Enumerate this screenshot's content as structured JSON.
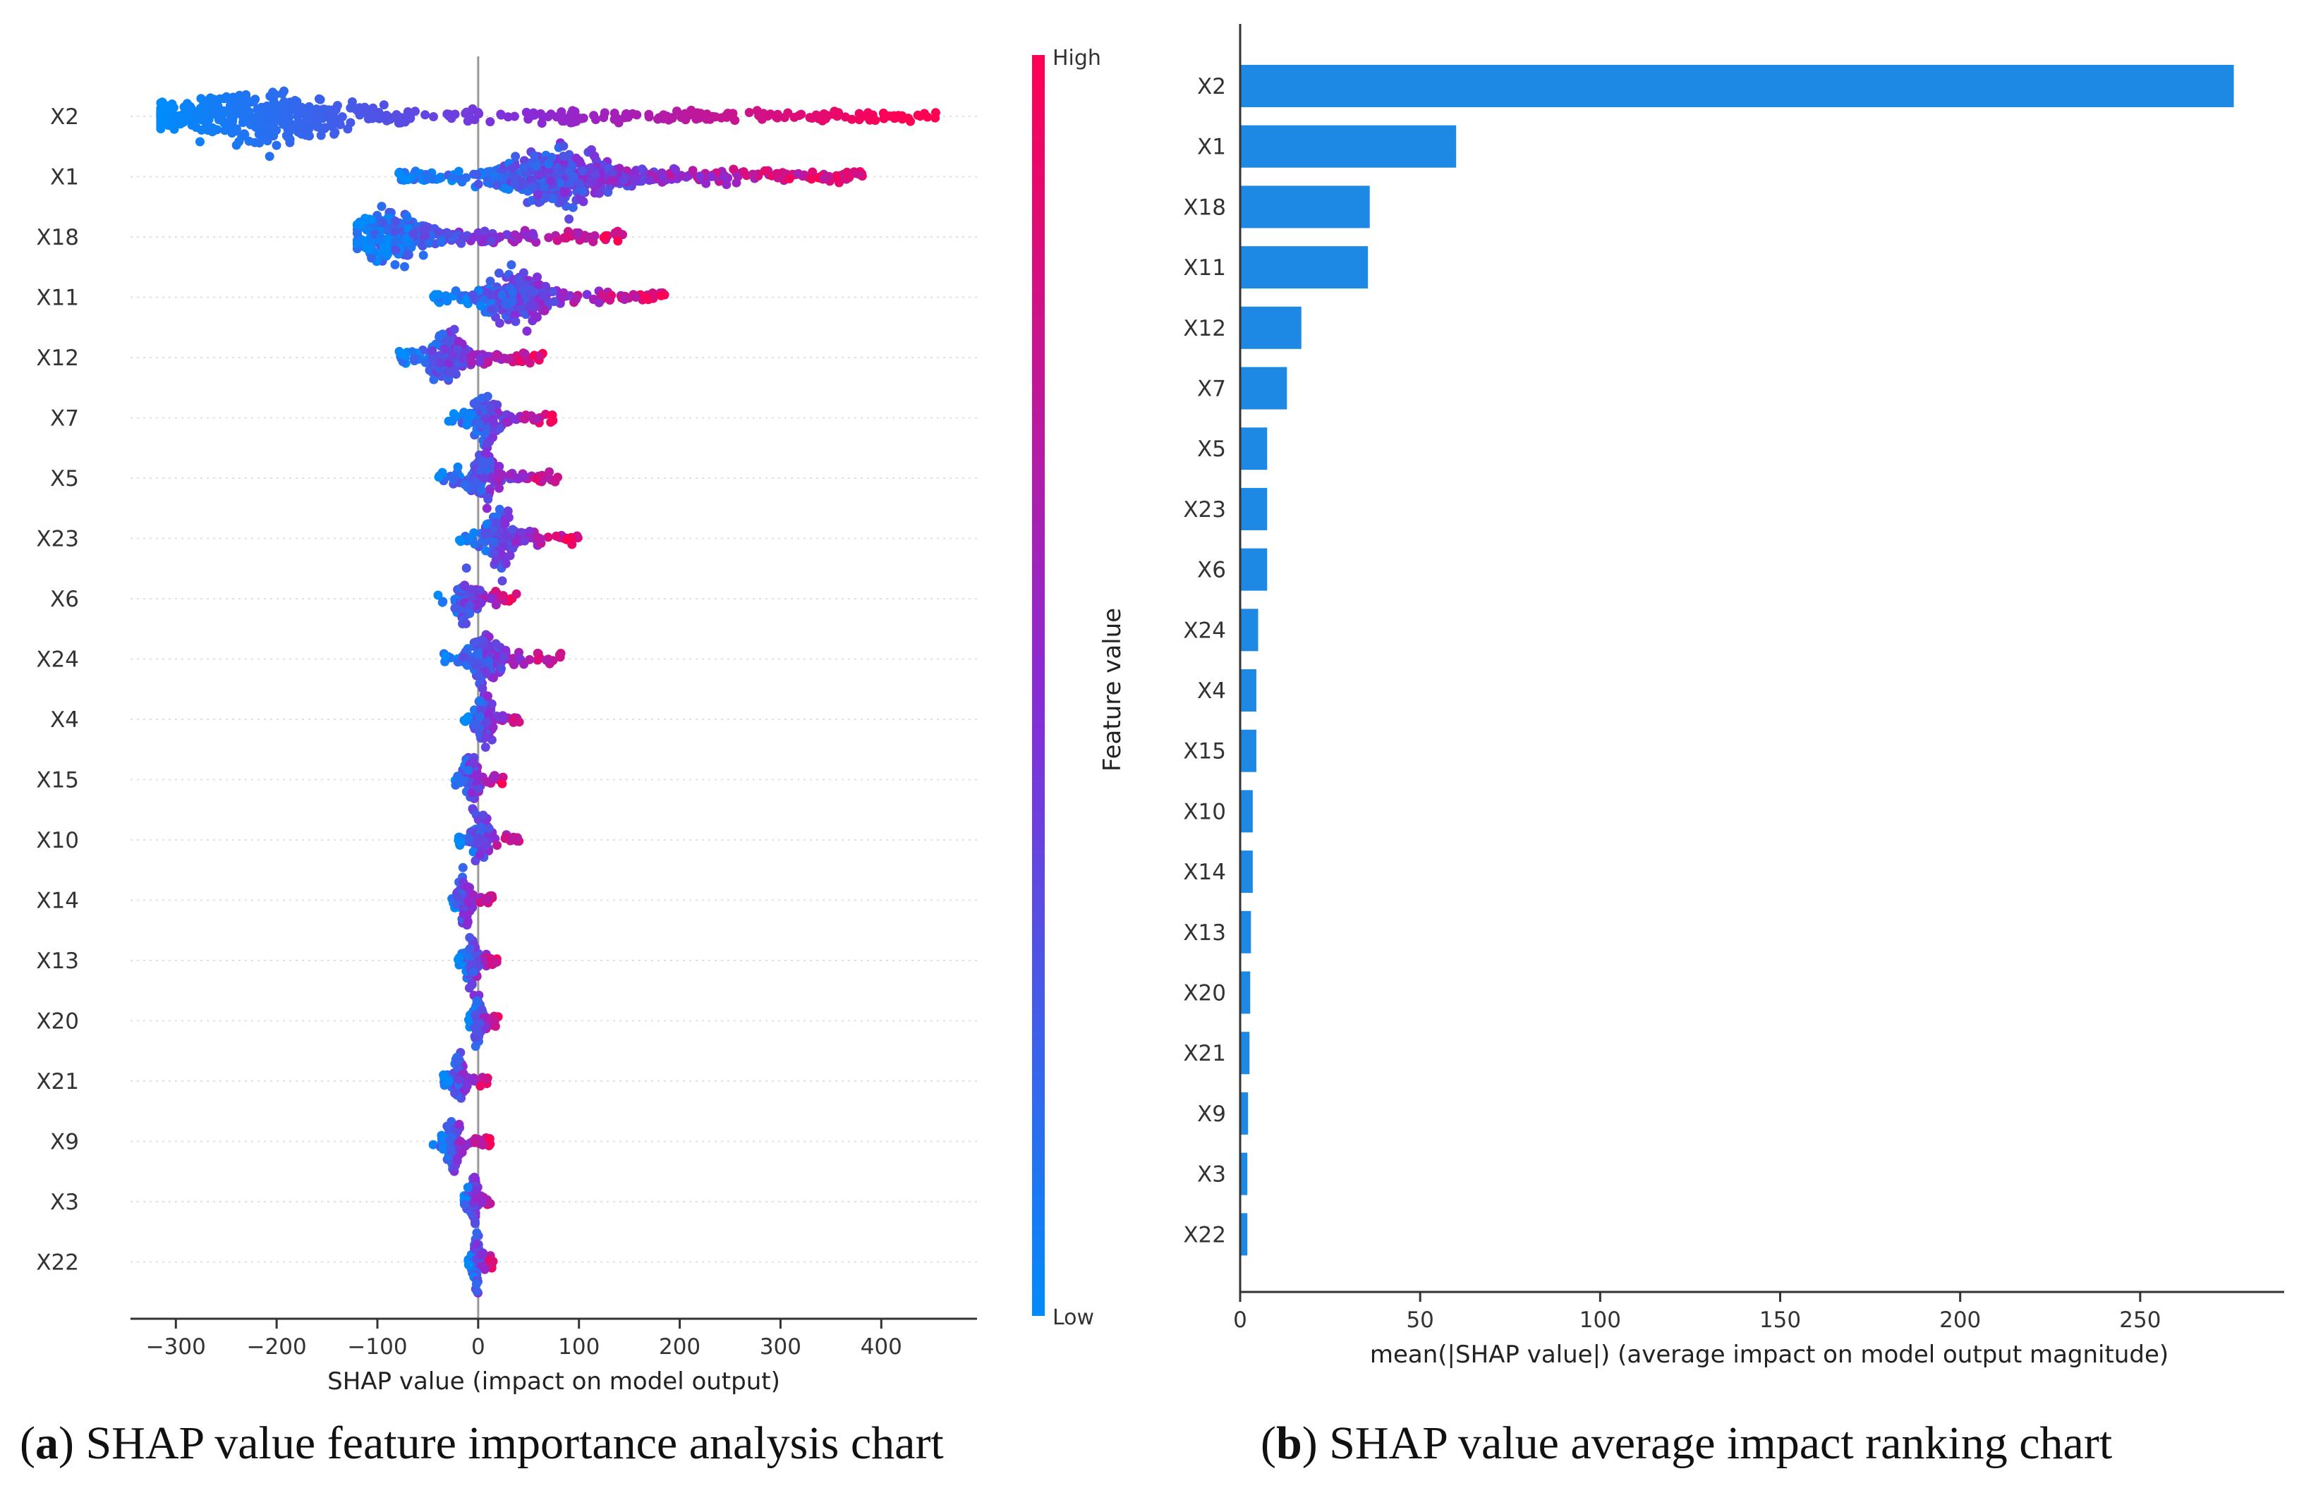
{
  "chart_data": [
    {
      "type": "scatter",
      "subtype": "shap-beeswarm",
      "features": [
        "X2",
        "X1",
        "X18",
        "X11",
        "X12",
        "X7",
        "X5",
        "X23",
        "X6",
        "X24",
        "X4",
        "X15",
        "X10",
        "X14",
        "X13",
        "X20",
        "X21",
        "X9",
        "X3",
        "X22"
      ],
      "x_ticks": [
        -300,
        -200,
        -100,
        0,
        100,
        200,
        300,
        400
      ],
      "xlim": [
        -345,
        495
      ],
      "xlabel": "SHAP value (impact on model output)",
      "colorbar": {
        "label": "Feature value",
        "high": "High",
        "low": "Low",
        "high_color": "#ff0052",
        "low_color": "#008bfb"
      },
      "ranges": [
        {
          "feature": "X2",
          "min": -315,
          "max": 460
        },
        {
          "feature": "X1",
          "min": -80,
          "max": 385
        },
        {
          "feature": "X18",
          "min": -120,
          "max": 145
        },
        {
          "feature": "X11",
          "min": -45,
          "max": 190
        },
        {
          "feature": "X12",
          "min": -80,
          "max": 65
        },
        {
          "feature": "X7",
          "min": -30,
          "max": 80
        },
        {
          "feature": "X5",
          "min": -40,
          "max": 85
        },
        {
          "feature": "X23",
          "min": -20,
          "max": 100
        },
        {
          "feature": "X6",
          "min": -40,
          "max": 40
        },
        {
          "feature": "X24",
          "min": -35,
          "max": 85
        },
        {
          "feature": "X4",
          "min": -15,
          "max": 45
        },
        {
          "feature": "X15",
          "min": -25,
          "max": 25
        },
        {
          "feature": "X10",
          "min": -20,
          "max": 45
        },
        {
          "feature": "X14",
          "min": -30,
          "max": 15
        },
        {
          "feature": "X13",
          "min": -20,
          "max": 20
        },
        {
          "feature": "X20",
          "min": -10,
          "max": 20
        },
        {
          "feature": "X21",
          "min": -35,
          "max": 10
        },
        {
          "feature": "X9",
          "min": -45,
          "max": 15
        },
        {
          "feature": "X3",
          "min": -15,
          "max": 15
        },
        {
          "feature": "X22",
          "min": -10,
          "max": 15
        }
      ]
    },
    {
      "type": "bar",
      "orientation": "horizontal",
      "categories": [
        "X2",
        "X1",
        "X18",
        "X11",
        "X12",
        "X7",
        "X5",
        "X23",
        "X6",
        "X24",
        "X4",
        "X15",
        "X10",
        "X14",
        "X13",
        "X20",
        "X21",
        "X9",
        "X3",
        "X22"
      ],
      "values": [
        276,
        60,
        36,
        35.5,
        17,
        13,
        7.5,
        7.5,
        7.5,
        5,
        4.5,
        4.5,
        3.5,
        3.5,
        3,
        2.8,
        2.6,
        2.2,
        2,
        2
      ],
      "x_ticks": [
        0,
        50,
        100,
        150,
        200,
        250
      ],
      "xlim": [
        0,
        290
      ],
      "xlabel": "mean(|SHAP value|) (average impact on model output magnitude)",
      "bar_color": "#1e88e5"
    }
  ],
  "captions": {
    "a": {
      "letter": "a",
      "text": "SHAP value feature importance analysis chart"
    },
    "b": {
      "letter": "b",
      "text": "SHAP value average impact ranking chart"
    }
  }
}
